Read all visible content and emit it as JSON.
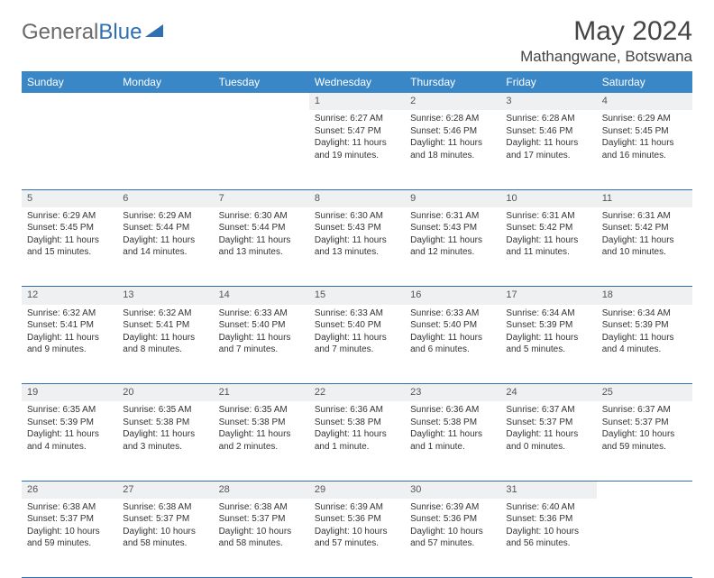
{
  "logo": {
    "part1": "General",
    "part2": "Blue"
  },
  "title": "May 2024",
  "location": "Mathangwane, Botswana",
  "colors": {
    "header_bg": "#3a87c8",
    "border": "#2f6fb3",
    "daynum_bg": "#eef0f2",
    "text": "#333333"
  },
  "weekdays": [
    "Sunday",
    "Monday",
    "Tuesday",
    "Wednesday",
    "Thursday",
    "Friday",
    "Saturday"
  ],
  "weeks": [
    [
      null,
      null,
      null,
      {
        "n": "1",
        "sr": "6:27 AM",
        "ss": "5:47 PM",
        "dl": "11 hours and 19 minutes."
      },
      {
        "n": "2",
        "sr": "6:28 AM",
        "ss": "5:46 PM",
        "dl": "11 hours and 18 minutes."
      },
      {
        "n": "3",
        "sr": "6:28 AM",
        "ss": "5:46 PM",
        "dl": "11 hours and 17 minutes."
      },
      {
        "n": "4",
        "sr": "6:29 AM",
        "ss": "5:45 PM",
        "dl": "11 hours and 16 minutes."
      }
    ],
    [
      {
        "n": "5",
        "sr": "6:29 AM",
        "ss": "5:45 PM",
        "dl": "11 hours and 15 minutes."
      },
      {
        "n": "6",
        "sr": "6:29 AM",
        "ss": "5:44 PM",
        "dl": "11 hours and 14 minutes."
      },
      {
        "n": "7",
        "sr": "6:30 AM",
        "ss": "5:44 PM",
        "dl": "11 hours and 13 minutes."
      },
      {
        "n": "8",
        "sr": "6:30 AM",
        "ss": "5:43 PM",
        "dl": "11 hours and 13 minutes."
      },
      {
        "n": "9",
        "sr": "6:31 AM",
        "ss": "5:43 PM",
        "dl": "11 hours and 12 minutes."
      },
      {
        "n": "10",
        "sr": "6:31 AM",
        "ss": "5:42 PM",
        "dl": "11 hours and 11 minutes."
      },
      {
        "n": "11",
        "sr": "6:31 AM",
        "ss": "5:42 PM",
        "dl": "11 hours and 10 minutes."
      }
    ],
    [
      {
        "n": "12",
        "sr": "6:32 AM",
        "ss": "5:41 PM",
        "dl": "11 hours and 9 minutes."
      },
      {
        "n": "13",
        "sr": "6:32 AM",
        "ss": "5:41 PM",
        "dl": "11 hours and 8 minutes."
      },
      {
        "n": "14",
        "sr": "6:33 AM",
        "ss": "5:40 PM",
        "dl": "11 hours and 7 minutes."
      },
      {
        "n": "15",
        "sr": "6:33 AM",
        "ss": "5:40 PM",
        "dl": "11 hours and 7 minutes."
      },
      {
        "n": "16",
        "sr": "6:33 AM",
        "ss": "5:40 PM",
        "dl": "11 hours and 6 minutes."
      },
      {
        "n": "17",
        "sr": "6:34 AM",
        "ss": "5:39 PM",
        "dl": "11 hours and 5 minutes."
      },
      {
        "n": "18",
        "sr": "6:34 AM",
        "ss": "5:39 PM",
        "dl": "11 hours and 4 minutes."
      }
    ],
    [
      {
        "n": "19",
        "sr": "6:35 AM",
        "ss": "5:39 PM",
        "dl": "11 hours and 4 minutes."
      },
      {
        "n": "20",
        "sr": "6:35 AM",
        "ss": "5:38 PM",
        "dl": "11 hours and 3 minutes."
      },
      {
        "n": "21",
        "sr": "6:35 AM",
        "ss": "5:38 PM",
        "dl": "11 hours and 2 minutes."
      },
      {
        "n": "22",
        "sr": "6:36 AM",
        "ss": "5:38 PM",
        "dl": "11 hours and 1 minute."
      },
      {
        "n": "23",
        "sr": "6:36 AM",
        "ss": "5:38 PM",
        "dl": "11 hours and 1 minute."
      },
      {
        "n": "24",
        "sr": "6:37 AM",
        "ss": "5:37 PM",
        "dl": "11 hours and 0 minutes."
      },
      {
        "n": "25",
        "sr": "6:37 AM",
        "ss": "5:37 PM",
        "dl": "10 hours and 59 minutes."
      }
    ],
    [
      {
        "n": "26",
        "sr": "6:38 AM",
        "ss": "5:37 PM",
        "dl": "10 hours and 59 minutes."
      },
      {
        "n": "27",
        "sr": "6:38 AM",
        "ss": "5:37 PM",
        "dl": "10 hours and 58 minutes."
      },
      {
        "n": "28",
        "sr": "6:38 AM",
        "ss": "5:37 PM",
        "dl": "10 hours and 58 minutes."
      },
      {
        "n": "29",
        "sr": "6:39 AM",
        "ss": "5:36 PM",
        "dl": "10 hours and 57 minutes."
      },
      {
        "n": "30",
        "sr": "6:39 AM",
        "ss": "5:36 PM",
        "dl": "10 hours and 57 minutes."
      },
      {
        "n": "31",
        "sr": "6:40 AM",
        "ss": "5:36 PM",
        "dl": "10 hours and 56 minutes."
      },
      null
    ]
  ],
  "labels": {
    "sunrise": "Sunrise: ",
    "sunset": "Sunset: ",
    "daylight": "Daylight: "
  }
}
